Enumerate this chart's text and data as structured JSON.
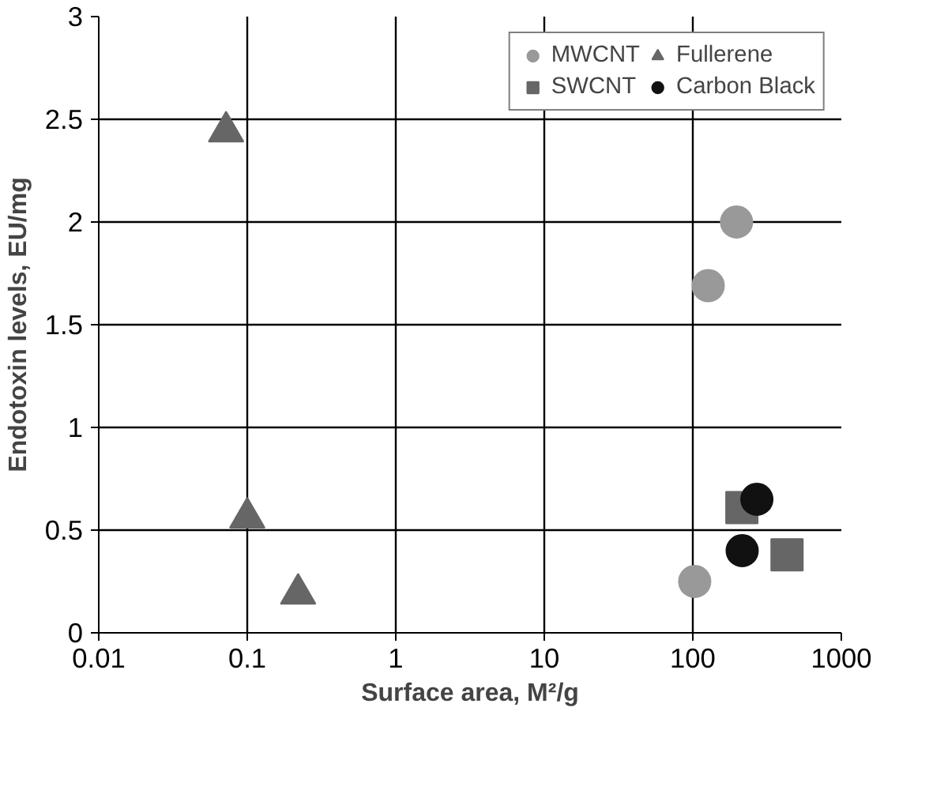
{
  "chart_data": {
    "type": "scatter",
    "xlabel": "Surface area, M²/g",
    "ylabel": "Endotoxin levels, EU/mg",
    "log": "x",
    "grid": true,
    "legend": "top right",
    "xlim": [
      0.01,
      1000
    ],
    "xticks": [
      0.01,
      0.1,
      1,
      10,
      100,
      1000
    ],
    "ylim": [
      0,
      3
    ],
    "yticks": [
      0,
      0.5,
      1,
      1.5,
      2,
      2.5,
      3
    ],
    "series": [
      {
        "name": "MWCNT",
        "color": "#999999",
        "marker": "circle",
        "x": [
          197,
          127,
          103
        ],
        "values": [
          2.0,
          1.69,
          0.25
        ]
      },
      {
        "name": "Fullerene",
        "color": "#666666",
        "marker": "triangle",
        "x": [
          0.072,
          0.1,
          0.22
        ],
        "values": [
          2.44,
          0.56,
          0.19
        ]
      },
      {
        "name": "SWCNT",
        "color": "#666666",
        "marker": "square",
        "x": [
          214,
          431
        ],
        "values": [
          0.61,
          0.38
        ]
      },
      {
        "name": "Carbon Black",
        "color": "#111111",
        "marker": "circle",
        "x": [
          270,
          215
        ],
        "values": [
          0.65,
          0.4
        ]
      }
    ]
  }
}
